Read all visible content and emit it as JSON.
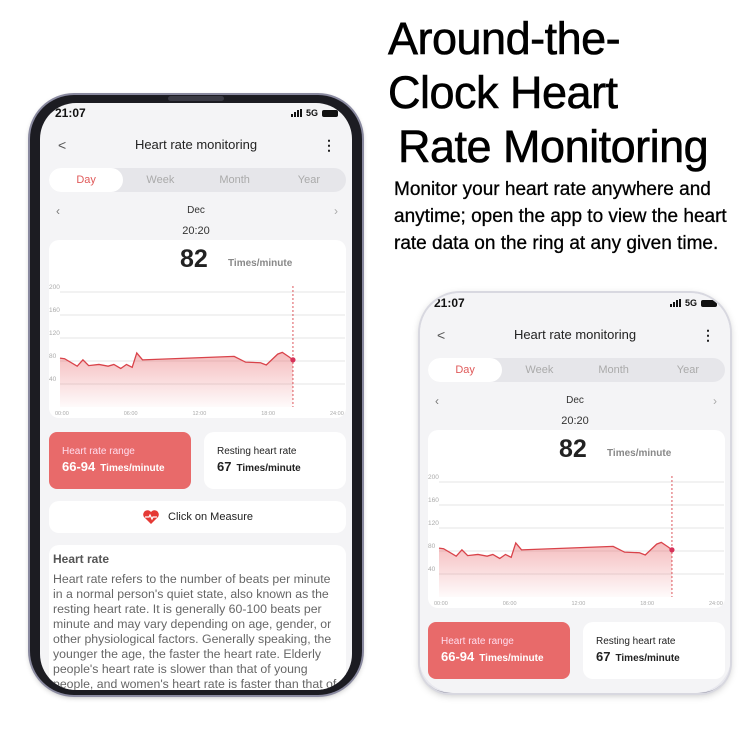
{
  "marketing": {
    "headline": [
      "Around-the-",
      "Clock Heart",
      "Rate Monitoring"
    ],
    "subtitle": "Monitor your heart rate anywhere and anytime; open the app to view the heart rate data on the ring at any given time."
  },
  "status_bar": {
    "time": "21:07",
    "network": "5G"
  },
  "header": {
    "title": "Heart rate monitoring",
    "back_icon": "chevron-left-icon",
    "menu_icon": "kebab-menu-icon"
  },
  "tabs": [
    {
      "label": "Day",
      "active": true
    },
    {
      "label": "Week"
    },
    {
      "label": "Month"
    },
    {
      "label": "Year"
    }
  ],
  "date_nav": {
    "label": "Dec",
    "selected_time": "20:20"
  },
  "current": {
    "value": "82",
    "unit": "Times/minute"
  },
  "accent_color": "#e86a6a",
  "chart_data": {
    "type": "area",
    "ylim": [
      0,
      200
    ],
    "y_ticks": [
      "200",
      "160",
      "120",
      "80",
      "40"
    ],
    "x_ticks": [
      "00:00",
      "06:00",
      "12:00",
      "18:00",
      "24:00"
    ],
    "x_unit": "hour",
    "x": [
      0,
      0.4,
      1.5,
      2,
      2.5,
      3.4,
      4.2,
      4.7,
      5.3,
      5.8,
      6.3,
      6.7,
      7.2,
      15.2,
      16.2,
      17.5,
      18,
      19,
      19.4,
      20,
      20.33
    ],
    "values": [
      85,
      84,
      71,
      82,
      72,
      74,
      71,
      74,
      67,
      74,
      69,
      94,
      82,
      88,
      78,
      77,
      73,
      92,
      95,
      87,
      82
    ],
    "cursor_time": "20:20",
    "grid": true,
    "line_color": "#d9434a"
  },
  "range_card": {
    "label": "Heart rate range",
    "value": "66-94",
    "unit": "Times/minute"
  },
  "resting_card": {
    "label": "Resting heart rate",
    "value": "67",
    "unit": "Times/minute"
  },
  "measure_button": {
    "label": "Click on Measure",
    "icon": "heart-pulse-icon"
  },
  "info": {
    "title": "Heart rate",
    "body": "Heart rate refers to the number of beats per minute in a normal person's quiet state, also known as the resting heart rate. It is generally 60-100 beats per minute and may vary depending on age, gender, or other physiological factors. Generally speaking, the younger the age, the faster the heart rate. Elderly people's heart rate is slower than that of young people, and women's heart rate is faster than that of men."
  }
}
